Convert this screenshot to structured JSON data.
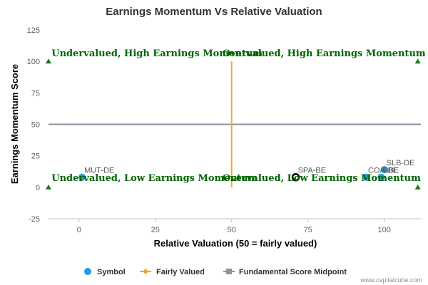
{
  "chart_data": {
    "type": "scatter",
    "title": "Earnings Momentum Vs Relative Valuation",
    "xlabel": "Relative Valuation (50 = fairly valued)",
    "ylabel": "Earnings Momentum Score",
    "xlim": [
      -10,
      112
    ],
    "ylim": [
      -25,
      125
    ],
    "xticks": [
      0,
      25,
      50,
      75,
      100
    ],
    "yticks": [
      -25,
      0,
      25,
      50,
      75,
      100,
      125
    ],
    "grid": false,
    "legend_position": "bottom",
    "series": [
      {
        "name": "Symbol",
        "color": "#1f9be0",
        "points": [
          {
            "label": "MUT-DE",
            "x": 1,
            "y": 8
          },
          {
            "label": "SPA-BE",
            "x": 71,
            "y": 8,
            "highlighted": true
          },
          {
            "label": "COA-BE",
            "x": 94,
            "y": 8
          },
          {
            "label": "SLB-DE",
            "x": 100,
            "y": 14
          },
          {
            "label": "SBE",
            "x": 99,
            "y": 8
          }
        ]
      },
      {
        "name": "Fairly Valued",
        "color": "#f5a623",
        "points": [
          {
            "x": 50,
            "y": 0
          },
          {
            "x": 50,
            "y": 100
          }
        ]
      },
      {
        "name": "Fundamental Score Midpoint",
        "color": "#8a93a0",
        "points": [
          {
            "x": -10,
            "y": 50
          },
          {
            "x": 112,
            "y": 50
          }
        ]
      }
    ],
    "markers": {
      "color": "#1a7a1a",
      "points": [
        {
          "x": -10,
          "y": 100
        },
        {
          "x": 111,
          "y": 100
        },
        {
          "x": -10,
          "y": 0
        },
        {
          "x": 111,
          "y": 0
        }
      ]
    },
    "annotations": [
      {
        "text": "Undervalued, High Earnings Momentum",
        "x": -9,
        "y": 104
      },
      {
        "text": "Overvalued, High Earnings Momentum",
        "x": 47,
        "y": 104
      },
      {
        "text": "Undervalued, Low Earnings Momentum",
        "x": -9,
        "y": 5
      },
      {
        "text": "Overvalued, Low Earnings Momentum",
        "x": 47,
        "y": 5
      }
    ]
  },
  "credit": "www.capitalcube.com"
}
